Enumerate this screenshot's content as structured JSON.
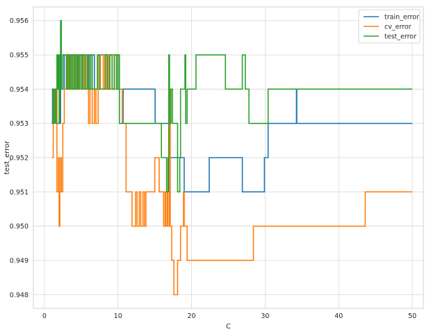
{
  "chart_data": {
    "type": "line",
    "title": "",
    "xlabel": "C",
    "ylabel": "test_error",
    "xlim": [
      -1.5,
      51.5
    ],
    "ylim": [
      0.9476,
      0.9564
    ],
    "x_ticks": [
      0,
      10,
      20,
      30,
      40,
      50
    ],
    "x_tick_labels": [
      "0",
      "10",
      "20",
      "30",
      "40",
      "50"
    ],
    "y_ticks": [
      0.948,
      0.949,
      0.95,
      0.951,
      0.952,
      0.953,
      0.954,
      0.955,
      0.956
    ],
    "y_tick_labels": [
      "0.948",
      "0.949",
      "0.950",
      "0.951",
      "0.952",
      "0.953",
      "0.954",
      "0.955",
      "0.956"
    ],
    "grid": true,
    "legend_position": "top-right",
    "series": [
      {
        "name": "train_error",
        "color": "#1f77b4",
        "points": [
          [
            1.0,
            0.953
          ],
          [
            1.1,
            0.954
          ],
          [
            1.2,
            0.953
          ],
          [
            1.3,
            0.954
          ],
          [
            1.4,
            0.953
          ],
          [
            1.6,
            0.954
          ],
          [
            1.7,
            0.953
          ],
          [
            2.1,
            0.953
          ],
          [
            2.2,
            0.955
          ],
          [
            2.3,
            0.954
          ],
          [
            2.5,
            0.955
          ],
          [
            2.7,
            0.954
          ],
          [
            3.0,
            0.955
          ],
          [
            3.3,
            0.954
          ],
          [
            3.6,
            0.955
          ],
          [
            4.0,
            0.954
          ],
          [
            4.2,
            0.955
          ],
          [
            4.5,
            0.954
          ],
          [
            4.8,
            0.955
          ],
          [
            5.2,
            0.954
          ],
          [
            5.5,
            0.955
          ],
          [
            5.8,
            0.954
          ],
          [
            6.1,
            0.955
          ],
          [
            6.5,
            0.955
          ],
          [
            6.8,
            0.954
          ],
          [
            7.2,
            0.954
          ],
          [
            7.5,
            0.955
          ],
          [
            8.0,
            0.955
          ],
          [
            8.5,
            0.954
          ],
          [
            8.8,
            0.955
          ],
          [
            9.2,
            0.954
          ],
          [
            9.5,
            0.955
          ],
          [
            9.8,
            0.955
          ],
          [
            10.0,
            0.954
          ],
          [
            10.5,
            0.954
          ],
          [
            10.6,
            0.953
          ],
          [
            10.7,
            0.954
          ],
          [
            15.0,
            0.954
          ],
          [
            15.05,
            0.953
          ],
          [
            16.8,
            0.953
          ],
          [
            16.9,
            0.951
          ],
          [
            17.0,
            0.952
          ],
          [
            18.9,
            0.952
          ],
          [
            19.0,
            0.951
          ],
          [
            22.3,
            0.951
          ],
          [
            22.4,
            0.952
          ],
          [
            26.8,
            0.952
          ],
          [
            26.9,
            0.951
          ],
          [
            29.8,
            0.951
          ],
          [
            29.9,
            0.952
          ],
          [
            30.3,
            0.952
          ],
          [
            30.4,
            0.953
          ],
          [
            34.2,
            0.953
          ],
          [
            34.25,
            0.954
          ],
          [
            34.3,
            0.953
          ],
          [
            50.0,
            0.953
          ]
        ]
      },
      {
        "name": "cv_error",
        "color": "#ff7f0e",
        "points": [
          [
            1.0,
            0.952
          ],
          [
            1.2,
            0.954
          ],
          [
            1.4,
            0.953
          ],
          [
            1.6,
            0.954
          ],
          [
            1.7,
            0.951
          ],
          [
            1.9,
            0.952
          ],
          [
            2.0,
            0.95
          ],
          [
            2.1,
            0.951
          ],
          [
            2.2,
            0.952
          ],
          [
            2.3,
            0.951
          ],
          [
            2.5,
            0.953
          ],
          [
            2.7,
            0.954
          ],
          [
            3.0,
            0.954
          ],
          [
            3.1,
            0.955
          ],
          [
            3.3,
            0.954
          ],
          [
            3.5,
            0.955
          ],
          [
            3.8,
            0.954
          ],
          [
            4.1,
            0.955
          ],
          [
            4.4,
            0.954
          ],
          [
            4.7,
            0.955
          ],
          [
            5.0,
            0.954
          ],
          [
            5.3,
            0.955
          ],
          [
            5.6,
            0.954
          ],
          [
            5.9,
            0.955
          ],
          [
            6.0,
            0.953
          ],
          [
            6.2,
            0.954
          ],
          [
            6.5,
            0.953
          ],
          [
            6.8,
            0.954
          ],
          [
            7.0,
            0.953
          ],
          [
            7.3,
            0.955
          ],
          [
            7.6,
            0.954
          ],
          [
            8.0,
            0.955
          ],
          [
            8.2,
            0.954
          ],
          [
            8.5,
            0.955
          ],
          [
            8.8,
            0.954
          ],
          [
            9.2,
            0.955
          ],
          [
            9.5,
            0.954
          ],
          [
            9.8,
            0.955
          ],
          [
            10.0,
            0.954
          ],
          [
            10.5,
            0.954
          ],
          [
            10.6,
            0.953
          ],
          [
            11.0,
            0.953
          ],
          [
            11.1,
            0.951
          ],
          [
            11.8,
            0.951
          ],
          [
            11.9,
            0.95
          ],
          [
            12.3,
            0.95
          ],
          [
            12.4,
            0.951
          ],
          [
            12.6,
            0.95
          ],
          [
            12.9,
            0.951
          ],
          [
            13.1,
            0.95
          ],
          [
            13.4,
            0.951
          ],
          [
            13.6,
            0.95
          ],
          [
            13.8,
            0.951
          ],
          [
            14.9,
            0.951
          ],
          [
            15.0,
            0.952
          ],
          [
            15.5,
            0.952
          ],
          [
            15.6,
            0.951
          ],
          [
            16.1,
            0.951
          ],
          [
            16.2,
            0.95
          ],
          [
            16.4,
            0.951
          ],
          [
            16.5,
            0.95
          ],
          [
            16.7,
            0.951
          ],
          [
            16.8,
            0.95
          ],
          [
            17.0,
            0.954
          ],
          [
            17.1,
            0.95
          ],
          [
            17.3,
            0.949
          ],
          [
            17.5,
            0.949
          ],
          [
            17.6,
            0.948
          ],
          [
            18.0,
            0.948
          ],
          [
            18.1,
            0.949
          ],
          [
            18.4,
            0.949
          ],
          [
            18.5,
            0.95
          ],
          [
            18.8,
            0.95
          ],
          [
            18.9,
            0.951
          ],
          [
            19.0,
            0.95
          ],
          [
            19.3,
            0.95
          ],
          [
            19.4,
            0.949
          ],
          [
            28.3,
            0.949
          ],
          [
            28.4,
            0.95
          ],
          [
            43.5,
            0.95
          ],
          [
            43.6,
            0.951
          ],
          [
            50.0,
            0.951
          ]
        ]
      },
      {
        "name": "test_error",
        "color": "#2ca02c",
        "points": [
          [
            1.0,
            0.954
          ],
          [
            1.2,
            0.953
          ],
          [
            1.3,
            0.954
          ],
          [
            1.5,
            0.953
          ],
          [
            1.6,
            0.954
          ],
          [
            1.7,
            0.955
          ],
          [
            1.8,
            0.954
          ],
          [
            1.9,
            0.955
          ],
          [
            2.0,
            0.953
          ],
          [
            2.1,
            0.955
          ],
          [
            2.2,
            0.956
          ],
          [
            2.3,
            0.954
          ],
          [
            2.5,
            0.955
          ],
          [
            2.8,
            0.955
          ],
          [
            3.0,
            0.954
          ],
          [
            3.2,
            0.955
          ],
          [
            3.4,
            0.954
          ],
          [
            3.6,
            0.955
          ],
          [
            3.8,
            0.954
          ],
          [
            4.0,
            0.955
          ],
          [
            4.2,
            0.954
          ],
          [
            4.4,
            0.955
          ],
          [
            4.6,
            0.954
          ],
          [
            4.8,
            0.955
          ],
          [
            5.0,
            0.954
          ],
          [
            5.2,
            0.955
          ],
          [
            5.5,
            0.954
          ],
          [
            5.8,
            0.955
          ],
          [
            6.0,
            0.954
          ],
          [
            6.3,
            0.955
          ],
          [
            6.5,
            0.954
          ],
          [
            7.0,
            0.954
          ],
          [
            7.2,
            0.955
          ],
          [
            7.5,
            0.954
          ],
          [
            8.0,
            0.954
          ],
          [
            8.3,
            0.955
          ],
          [
            8.6,
            0.954
          ],
          [
            8.9,
            0.955
          ],
          [
            9.2,
            0.954
          ],
          [
            9.5,
            0.955
          ],
          [
            9.8,
            0.954
          ],
          [
            10.0,
            0.955
          ],
          [
            10.2,
            0.953
          ],
          [
            15.8,
            0.953
          ],
          [
            15.9,
            0.952
          ],
          [
            16.5,
            0.952
          ],
          [
            16.6,
            0.951
          ],
          [
            16.8,
            0.952
          ],
          [
            16.9,
            0.955
          ],
          [
            17.0,
            0.953
          ],
          [
            17.2,
            0.954
          ],
          [
            17.4,
            0.953
          ],
          [
            18.0,
            0.953
          ],
          [
            18.1,
            0.951
          ],
          [
            18.4,
            0.952
          ],
          [
            18.5,
            0.954
          ],
          [
            19.0,
            0.954
          ],
          [
            19.1,
            0.955
          ],
          [
            19.2,
            0.953
          ],
          [
            19.4,
            0.954
          ],
          [
            20.5,
            0.954
          ],
          [
            20.6,
            0.955
          ],
          [
            24.5,
            0.955
          ],
          [
            24.6,
            0.954
          ],
          [
            26.8,
            0.954
          ],
          [
            26.9,
            0.955
          ],
          [
            27.2,
            0.955
          ],
          [
            27.3,
            0.954
          ],
          [
            27.7,
            0.954
          ],
          [
            27.8,
            0.953
          ],
          [
            30.3,
            0.953
          ],
          [
            30.4,
            0.954
          ],
          [
            50.0,
            0.954
          ]
        ]
      }
    ]
  }
}
